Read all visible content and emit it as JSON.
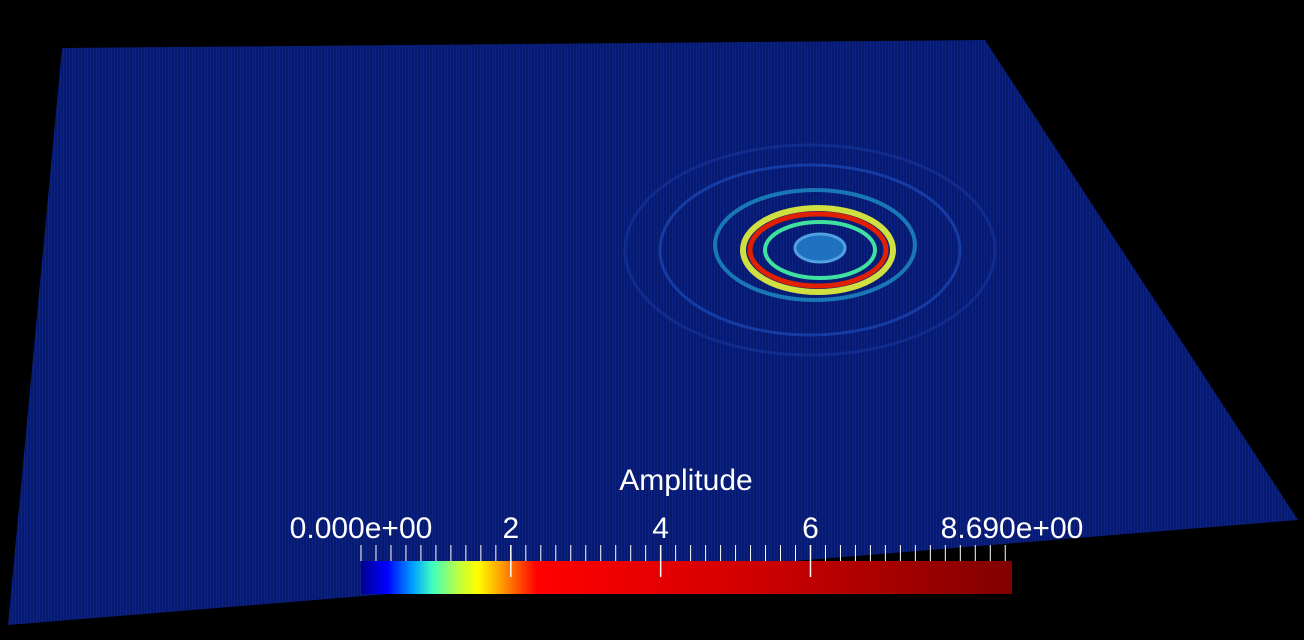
{
  "colorbar": {
    "title": "Amplitude",
    "min": {
      "value": 0,
      "label": "0.000e+00"
    },
    "max": {
      "value": 8.69,
      "label": "8.690e+00"
    },
    "ticks": [
      2,
      4,
      6
    ]
  }
}
